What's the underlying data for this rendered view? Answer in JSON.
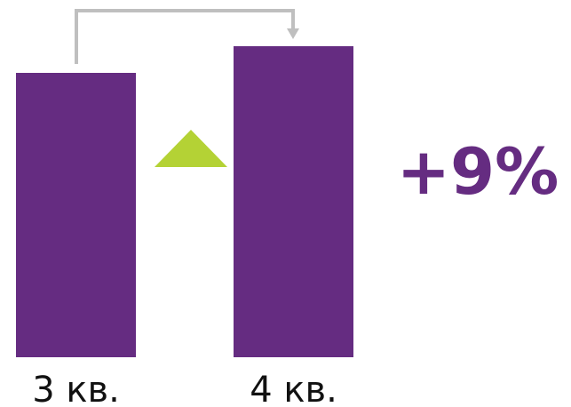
{
  "chart_data": {
    "type": "bar",
    "categories": [
      "3 кв.",
      "4 кв."
    ],
    "values": [
      320,
      350
    ],
    "ylim": [
      0,
      350
    ],
    "change_label": "+9%",
    "grid": false,
    "legend": "none"
  },
  "colors": {
    "bar": "#652c81",
    "increase_triangle": "#b4d235",
    "connector_arrow": "#bfbfbf",
    "change_text": "#652c81"
  },
  "icons": {
    "increase_indicator": "up-triangle-icon",
    "connector": "bracket-arrow-icon"
  }
}
